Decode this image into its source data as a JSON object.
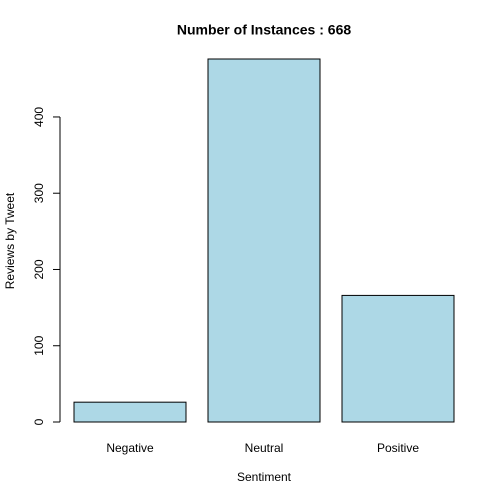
{
  "chart_data": {
    "type": "bar",
    "title": "Number of Instances :  668",
    "x_label": "Sentiment",
    "y_label": "Reviews by Tweet",
    "categories": [
      "Negative",
      "Neutral",
      "Positive"
    ],
    "values": [
      26,
      476,
      166
    ],
    "color": "#add8e6",
    "ylim": [
      0,
      476
    ],
    "yticks": [
      0,
      100,
      200,
      300,
      400
    ]
  }
}
